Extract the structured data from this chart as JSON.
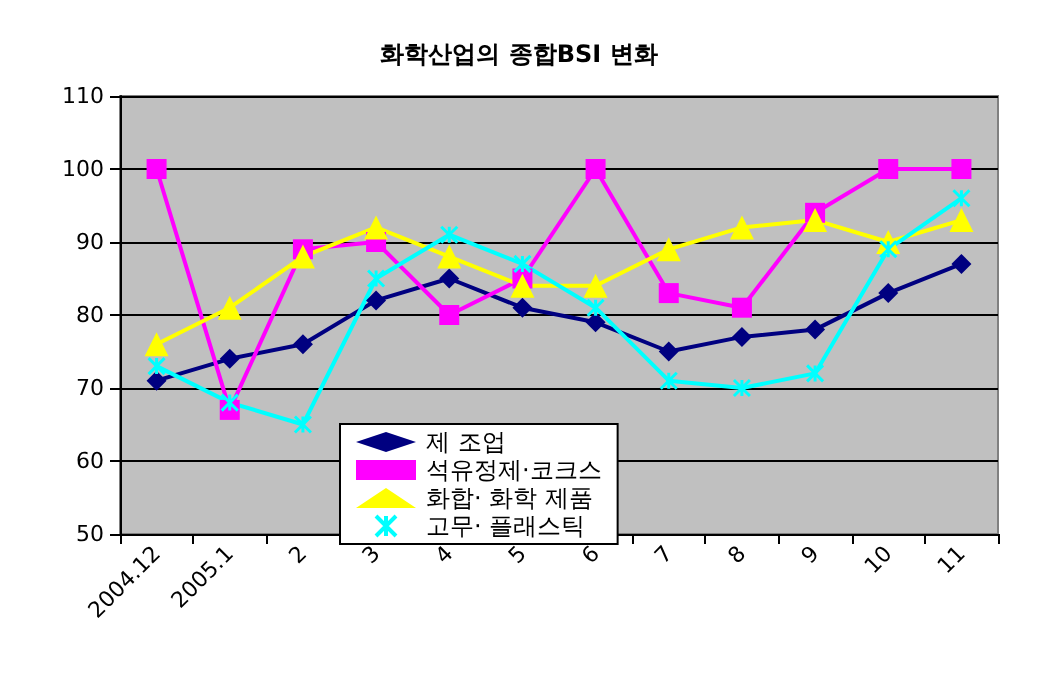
{
  "chart_data": {
    "type": "line",
    "title": "화학산업의 종합BSI 변화",
    "categories": [
      "2004.12",
      "2005.1",
      "2",
      "3",
      "4",
      "5",
      "6",
      "7",
      "8",
      "9",
      "10",
      "11"
    ],
    "series": [
      {
        "name": "제 조업",
        "color": "#000080",
        "marker": "diamond",
        "values": [
          71,
          74,
          76,
          82,
          85,
          81,
          79,
          75,
          77,
          78,
          83,
          87
        ]
      },
      {
        "name": "석유정제·코크스",
        "color": "#ff00ff",
        "marker": "square",
        "values": [
          100,
          67,
          89,
          90,
          80,
          85,
          100,
          83,
          81,
          94,
          100,
          100
        ]
      },
      {
        "name": "화합· 화학 제품",
        "color": "#ffff00",
        "marker": "triangle",
        "values": [
          76,
          81,
          88,
          92,
          88,
          84,
          84,
          89,
          92,
          93,
          90,
          93
        ]
      },
      {
        "name": "고무· 플래스틱",
        "color": "#00ffff",
        "marker": "cross",
        "values": [
          73,
          68,
          65,
          85,
          91,
          87,
          81,
          71,
          70,
          72,
          89,
          96
        ]
      }
    ],
    "ylim": [
      50,
      110
    ],
    "yticks": [
      50,
      60,
      70,
      80,
      90,
      100,
      110
    ],
    "grid": "y",
    "legend": "bottom"
  }
}
